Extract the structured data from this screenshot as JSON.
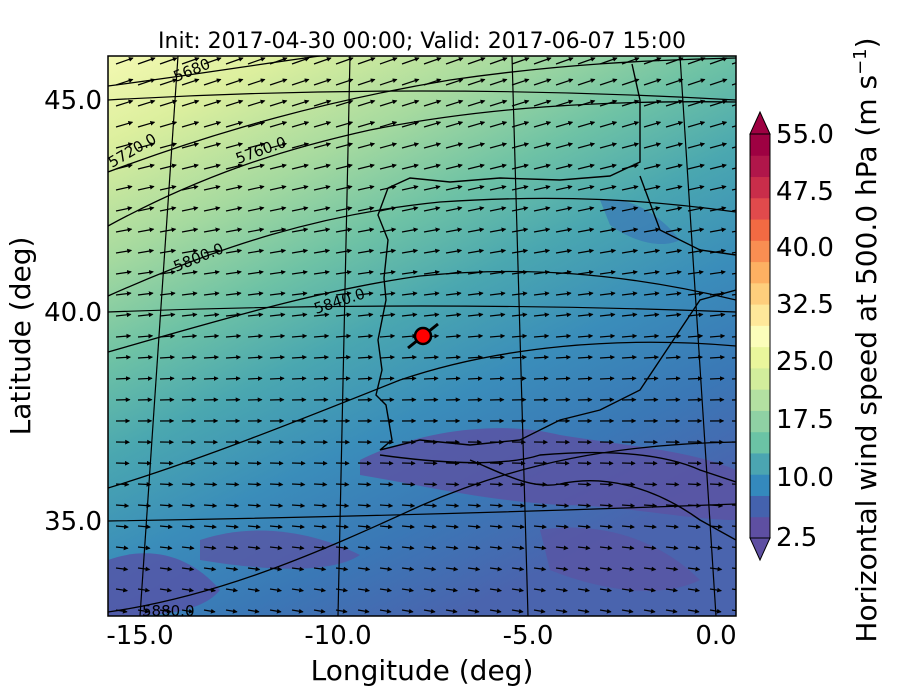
{
  "map": {
    "title": "Init: 2017-04-30 00:00; Valid: 2017-06-07 15:00",
    "xlabel": "Longitude (deg)",
    "ylabel": "Latitude (deg)",
    "x_ticks": [
      "-15.0",
      "-10.0",
      "-5.0",
      "0.0"
    ],
    "y_ticks": [
      "45.0",
      "40.0",
      "35.0"
    ],
    "colorbar": {
      "label": "Horizontal wind speed at 500.0 hPa (m s",
      "label_sup": "−1",
      "label_tail": ")",
      "tick_labels": [
        "55.0",
        "47.5",
        "40.0",
        "32.5",
        "25.0",
        "17.5",
        "10.0",
        "2.5"
      ],
      "colors": [
        "#5e4fa2",
        "#4462ae",
        "#3489bd",
        "#4ba5b1",
        "#6bc3a5",
        "#8fd1a4",
        "#b3e0a2",
        "#d2ed9c",
        "#eaf69c",
        "#fbfdba",
        "#fee89a",
        "#fece7c",
        "#fdb062",
        "#f98e52",
        "#f26a43",
        "#e14a4c",
        "#c92d4a",
        "#b0164a",
        "#9e0142"
      ],
      "extend_color_top": "#9e0142",
      "extend_color_bottom": "#5e4fa2"
    },
    "contours": [
      {
        "label": "5680"
      },
      {
        "label": "5720.0"
      },
      {
        "label": "5760.0"
      },
      {
        "label": "5800.0"
      },
      {
        "label": "5840.0"
      },
      {
        "label": "5880.0"
      }
    ],
    "marker": {
      "name": "station",
      "lon": -7.7,
      "lat": 39.4,
      "color": "#ff0000"
    }
  }
}
